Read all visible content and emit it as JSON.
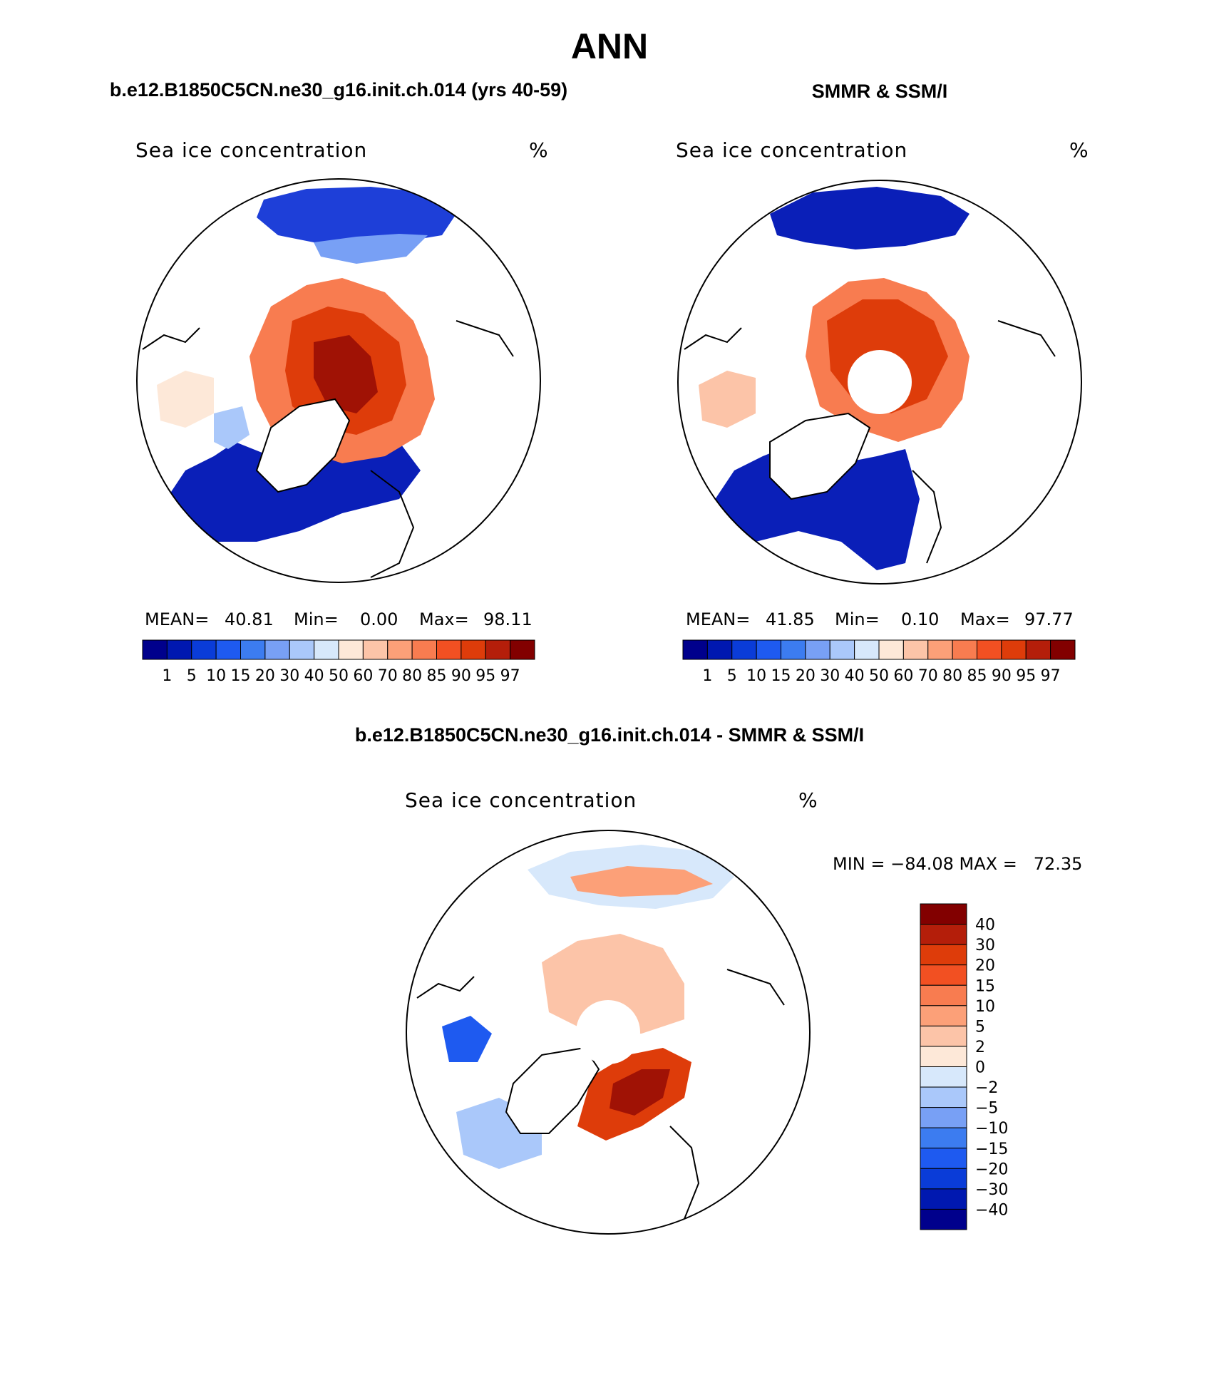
{
  "figure": {
    "title": "ANN",
    "panels": [
      {
        "heading": "b.e12.B1850C5CN.ne30_g16.init.ch.014 (yrs 40-59)",
        "variable": "Sea ice concentration",
        "units": "%",
        "stats": {
          "mean_label": "MEAN=",
          "mean": "40.81",
          "min_label": "Min=",
          "min": "0.00",
          "max_label": "Max=",
          "max": "98.11"
        },
        "pole_hole": false
      },
      {
        "heading": "SMMR & SSM/I",
        "variable": "Sea ice concentration",
        "units": "%",
        "stats": {
          "mean_label": "MEAN=",
          "mean": "41.85",
          "min_label": "Min=",
          "min": "0.10",
          "max_label": "Max=",
          "max": "97.77"
        },
        "pole_hole": true
      }
    ],
    "colorbar_abs": {
      "labels": [
        "1",
        "5",
        "10",
        "15",
        "20",
        "30",
        "40",
        "50",
        "60",
        "70",
        "80",
        "85",
        "90",
        "95",
        "97"
      ],
      "colors": [
        "#00008c",
        "#0018b0",
        "#0a3cd8",
        "#1e5af0",
        "#3c7cf0",
        "#78a0f5",
        "#aac8fa",
        "#d7e8fb",
        "#fde8d8",
        "#fcc4a8",
        "#fca078",
        "#f87c50",
        "#f25022",
        "#de3c0a",
        "#b41e0a",
        "#820000"
      ]
    },
    "diff": {
      "heading": "b.e12.B1850C5CN.ne30_g16.init.ch.014 - SMMR & SSM/I",
      "variable": "Sea ice concentration",
      "units": "%",
      "minmax_text": "MIN = −84.08 MAX =   72.35",
      "colorbar": {
        "labels": [
          "40",
          "30",
          "20",
          "15",
          "10",
          "5",
          "2",
          "0",
          "−2",
          "−5",
          "−10",
          "−15",
          "−20",
          "−30",
          "−40"
        ],
        "colors": [
          "#820000",
          "#b41e0a",
          "#de3c0a",
          "#f25022",
          "#f87c50",
          "#fca078",
          "#fcc4a8",
          "#fde8d8",
          "#d7e8fb",
          "#aac8fa",
          "#78a0f5",
          "#3c7cf0",
          "#1e5af0",
          "#0a3cd8",
          "#0018b0",
          "#00008c"
        ]
      }
    }
  }
}
